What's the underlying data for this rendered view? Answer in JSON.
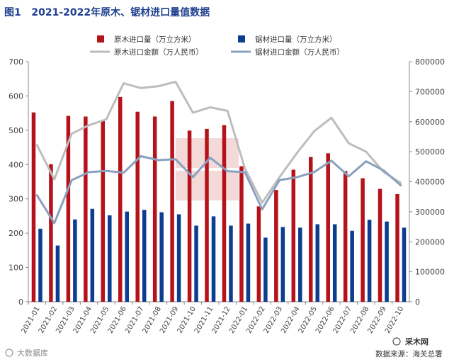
{
  "page_title": "图1   2021-2022年原木、锯材进口量值数据",
  "source_text": "数据来源：海关总署",
  "brand_text": "采木网",
  "watermark_text": "大数据库",
  "colors": {
    "title": "#1f3f8f",
    "log_volume": "#b5121b",
    "lumber_volume": "#0b3d91",
    "log_value": "#bdbdbd",
    "lumber_value": "#8aa0bf",
    "axis": "#888888",
    "grid": "#e6e6e6"
  },
  "chart_data": {
    "type": "bar",
    "categories": [
      "2021-01",
      "2021-02",
      "2021-03",
      "2021-04",
      "2021-05",
      "2021-06",
      "2021-07",
      "2021-08",
      "2021-09",
      "2021-10",
      "2021-11",
      "2021-12",
      "2022-01",
      "2022-02",
      "2022-03",
      "2022-04",
      "2022-05",
      "2022-06",
      "2022-07",
      "2022-08",
      "2022-09",
      "2022-10"
    ],
    "series": [
      {
        "name": "原木进口量（万立方米）",
        "kind": "bar",
        "axis": "left",
        "values": [
          552,
          401,
          542,
          540,
          527,
          597,
          554,
          540,
          585,
          499,
          504,
          515,
          395,
          278,
          326,
          385,
          422,
          433,
          381,
          360,
          329,
          314
        ]
      },
      {
        "name": "锯材进口量（万立方米）",
        "kind": "bar",
        "axis": "left",
        "values": [
          213,
          164,
          240,
          271,
          252,
          263,
          268,
          261,
          255,
          222,
          249,
          222,
          228,
          187,
          218,
          216,
          226,
          226,
          207,
          239,
          234,
          216
        ]
      },
      {
        "name": "原木进口金额（万人民币）",
        "kind": "line",
        "axis": "right",
        "values": [
          522000,
          408000,
          560000,
          588000,
          608000,
          728000,
          712000,
          718000,
          733000,
          630000,
          648000,
          636000,
          445000,
          330000,
          415000,
          495000,
          568000,
          613000,
          528000,
          500000,
          433000,
          396000
        ]
      },
      {
        "name": "锯材进口金额（万人民币）",
        "kind": "line",
        "axis": "right",
        "values": [
          355000,
          262000,
          405000,
          432000,
          436000,
          430000,
          485000,
          472000,
          475000,
          415000,
          480000,
          435000,
          432000,
          308000,
          405000,
          415000,
          432000,
          470000,
          418000,
          468000,
          438000,
          388000
        ]
      }
    ],
    "y_left": {
      "min": 0,
      "max": 700,
      "ticks": [
        0,
        100,
        200,
        300,
        400,
        500,
        600,
        700
      ]
    },
    "y_right": {
      "min": 0,
      "max": 800000,
      "ticks": [
        0,
        100000,
        200000,
        300000,
        400000,
        500000,
        600000,
        700000,
        800000
      ]
    },
    "legend_position": "top",
    "grid": false
  }
}
